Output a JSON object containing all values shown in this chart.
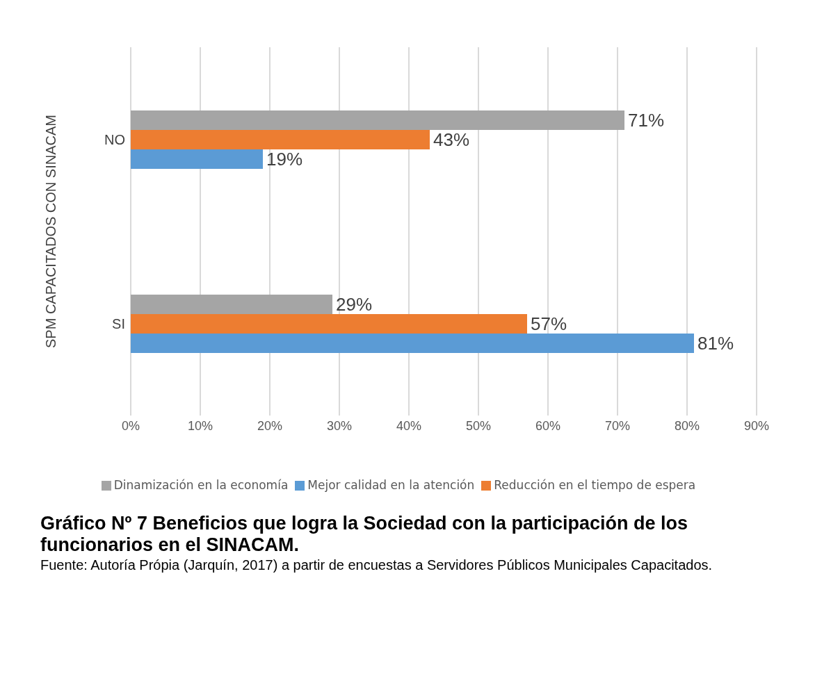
{
  "chart_data": {
    "type": "bar",
    "orientation": "horizontal",
    "title": "Gráfico Nº 7 Beneficios que logra la Sociedad con la participación de los funcionarios en el SINACAM.",
    "ylabel": "SPM CAPACITADOS CON SINACAM",
    "annotations": [
      "Fuente: Autoría Própia (Jarquín, 2017) a partir de encuestas a Servidores Públicos Municipales Capacitados."
    ],
    "categories": [
      "NO",
      "SI"
    ],
    "series": [
      {
        "name": "Dinamización en la economía",
        "color": "#a5a5a5",
        "values": [
          71,
          29
        ],
        "value_labels": [
          "71%",
          "29%"
        ]
      },
      {
        "name": "Reducción en el tiempo de espera",
        "color": "#ed7d31",
        "values": [
          43,
          57
        ],
        "value_labels": [
          "43%",
          "57%"
        ]
      },
      {
        "name": "Mejor calidad en la atención",
        "color": "#5b9bd5",
        "values": [
          19,
          81
        ],
        "value_labels": [
          "19%",
          "81%"
        ]
      }
    ],
    "xlim": [
      0,
      90
    ],
    "xticks": [
      {
        "value": 0,
        "label": "0%"
      },
      {
        "value": 10,
        "label": "10%"
      },
      {
        "value": 20,
        "label": "20%"
      },
      {
        "value": 30,
        "label": "30%"
      },
      {
        "value": 40,
        "label": "40%"
      },
      {
        "value": 50,
        "label": "50%"
      },
      {
        "value": 60,
        "label": "60%"
      },
      {
        "value": 70,
        "label": "70%"
      },
      {
        "value": 80,
        "label": "80%"
      },
      {
        "value": 90,
        "label": "90%"
      }
    ],
    "grid": "x",
    "legend": "bottom"
  }
}
